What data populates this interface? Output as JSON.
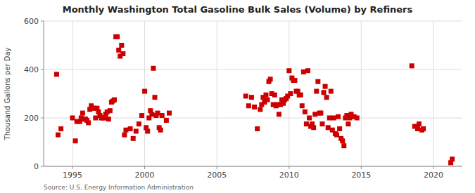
{
  "chart_data": {
    "type": "scatter",
    "title": "Monthly Washington Total Gasoline Bulk Sales (Volume) by Refiners",
    "ylabel": "Thousand Gallons per Day",
    "annotations": [
      "Source: U.S. Energy Information Administration"
    ],
    "color": "#cc0000",
    "marker": "square",
    "grid": true,
    "xlim": [
      1993,
      2022
    ],
    "ylim": [
      0,
      600
    ],
    "yticks": [
      0,
      200,
      400,
      600
    ],
    "xticks": [
      1995,
      2000,
      2005,
      2010,
      2015,
      2020
    ],
    "x": [
      1993.9,
      1994.0,
      1994.2,
      1995.0,
      1995.2,
      1995.3,
      1995.5,
      1995.6,
      1995.7,
      1995.8,
      1995.9,
      1996.0,
      1996.1,
      1996.2,
      1996.3,
      1996.4,
      1996.5,
      1996.6,
      1996.7,
      1996.8,
      1996.9,
      1997.0,
      1997.1,
      1997.2,
      1997.3,
      1997.4,
      1997.5,
      1997.6,
      1997.7,
      1997.8,
      1997.9,
      1998.0,
      1998.1,
      1998.2,
      1998.3,
      1998.4,
      1998.5,
      1998.6,
      1998.7,
      1999.0,
      1999.2,
      1999.4,
      1999.6,
      1999.8,
      2000.0,
      2000.1,
      2000.2,
      2000.3,
      2000.4,
      2000.5,
      2000.6,
      2000.7,
      2000.8,
      2000.9,
      2001.0,
      2001.1,
      2001.2,
      2001.5,
      2001.7,
      2007.0,
      2007.2,
      2007.4,
      2007.6,
      2007.8,
      2008.0,
      2008.1,
      2008.2,
      2008.3,
      2008.4,
      2008.5,
      2008.6,
      2008.7,
      2008.8,
      2008.9,
      2009.0,
      2009.1,
      2009.2,
      2009.3,
      2009.4,
      2009.5,
      2009.6,
      2009.7,
      2009.8,
      2009.9,
      2010.0,
      2010.1,
      2010.2,
      2010.3,
      2010.4,
      2010.5,
      2010.6,
      2010.7,
      2010.8,
      2010.9,
      2011.0,
      2011.1,
      2011.2,
      2011.3,
      2011.4,
      2011.5,
      2011.6,
      2011.7,
      2011.8,
      2011.9,
      2012.0,
      2012.1,
      2012.2,
      2012.3,
      2012.4,
      2012.5,
      2012.6,
      2012.7,
      2012.8,
      2012.9,
      2013.0,
      2013.1,
      2013.2,
      2013.3,
      2013.4,
      2013.5,
      2013.6,
      2013.7,
      2013.8,
      2013.9,
      2014.0,
      2014.1,
      2014.2,
      2014.3,
      2014.5,
      2014.7,
      2018.5,
      2018.7,
      2018.9,
      2019.0,
      2019.2,
      2019.3,
      2021.2,
      2021.3
    ],
    "values": [
      380,
      130,
      155,
      200,
      105,
      185,
      185,
      200,
      220,
      195,
      195,
      190,
      180,
      235,
      250,
      240,
      240,
      200,
      240,
      225,
      210,
      200,
      200,
      200,
      215,
      225,
      195,
      230,
      265,
      270,
      275,
      535,
      535,
      480,
      455,
      500,
      465,
      130,
      150,
      155,
      115,
      145,
      175,
      210,
      310,
      160,
      145,
      200,
      230,
      215,
      405,
      285,
      210,
      220,
      160,
      150,
      210,
      190,
      220,
      290,
      250,
      285,
      245,
      155,
      235,
      255,
      285,
      265,
      295,
      275,
      350,
      360,
      300,
      255,
      295,
      250,
      255,
      215,
      255,
      275,
      260,
      275,
      280,
      290,
      395,
      300,
      365,
      355,
      355,
      310,
      310,
      295,
      295,
      250,
      390,
      225,
      175,
      395,
      200,
      165,
      175,
      160,
      215,
      310,
      350,
      220,
      220,
      175,
      305,
      330,
      285,
      160,
      200,
      310,
      150,
      200,
      135,
      130,
      205,
      155,
      115,
      105,
      85,
      200,
      210,
      175,
      200,
      215,
      205,
      200,
      415,
      165,
      155,
      175,
      150,
      155,
      15,
      30
    ]
  }
}
